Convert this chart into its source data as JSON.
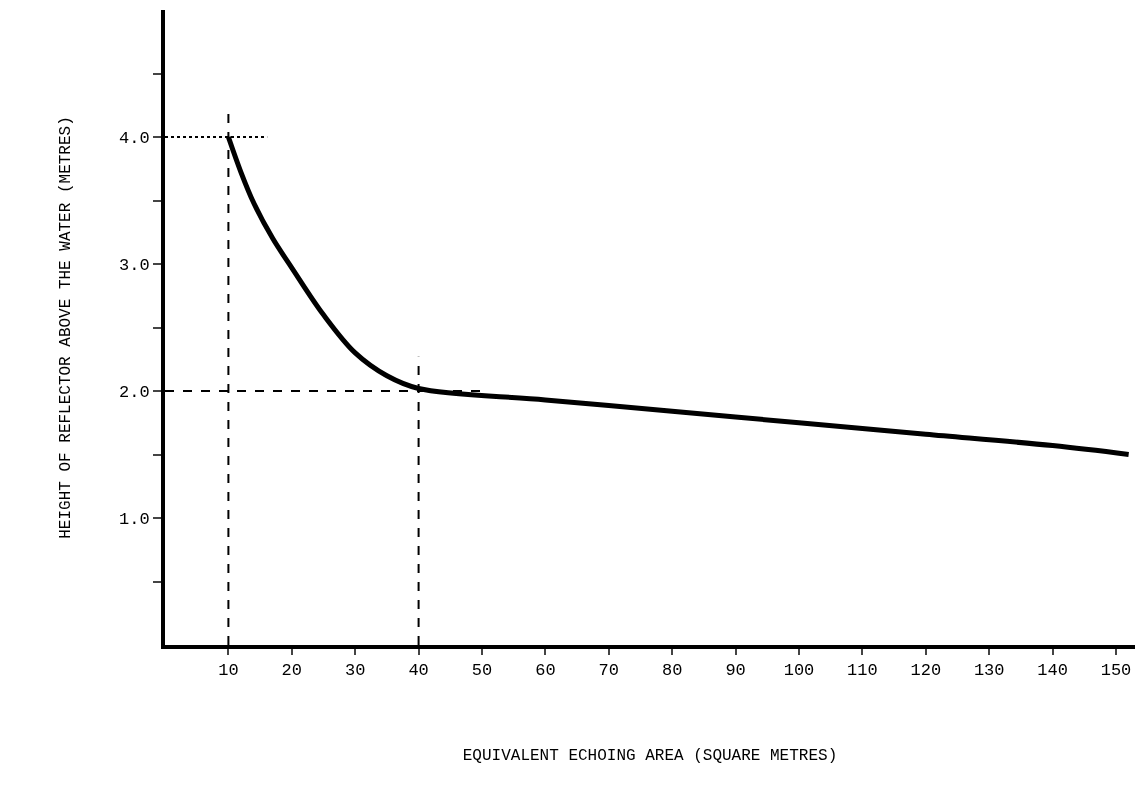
{
  "chart_data": {
    "type": "line",
    "xlabel": "EQUIVALENT ECHOING AREA (SQUARE METRES)",
    "ylabel": "HEIGHT OF REFLECTOR ABOVE THE WATER (METRES)",
    "xlim": [
      0,
      153
    ],
    "ylim": [
      0,
      5
    ],
    "xticks": [
      10,
      20,
      30,
      40,
      50,
      60,
      70,
      80,
      90,
      100,
      110,
      120,
      130,
      140,
      150
    ],
    "yticks": [
      {
        "value": 0.5,
        "label": null
      },
      {
        "value": 1,
        "label": "1.0"
      },
      {
        "value": 1.5,
        "label": null
      },
      {
        "value": 2,
        "label": "2.0"
      },
      {
        "value": 2.5,
        "label": null
      },
      {
        "value": 3,
        "label": "3.0"
      },
      {
        "value": 3.5,
        "label": null
      },
      {
        "value": 4,
        "label": "4.0"
      },
      {
        "value": 4.5,
        "label": null
      }
    ],
    "grid": false,
    "marker": "none",
    "line_style": "solid",
    "series": [
      {
        "color": "#000000",
        "x": [
          10,
          12,
          14,
          17,
          20,
          25,
          30,
          35,
          40,
          60,
          80,
          100,
          120,
          140,
          152
        ],
        "values": [
          4.0,
          3.72,
          3.48,
          3.2,
          2.97,
          2.6,
          2.3,
          2.12,
          2.02,
          1.93,
          1.84,
          1.75,
          1.66,
          1.57,
          1.5
        ]
      }
    ],
    "ref_lines": [
      {
        "axis": "x",
        "value": 10,
        "line_style": "dashed",
        "color": "#000000"
      },
      {
        "axis": "x",
        "value": 40,
        "line_style": "dashed",
        "color": "#000000"
      },
      {
        "axis": "y",
        "value": 4,
        "line_style": "dotted",
        "color": "#000000"
      },
      {
        "axis": "y",
        "value": 2,
        "line_style": "dashed",
        "color": "#000000"
      }
    ]
  }
}
